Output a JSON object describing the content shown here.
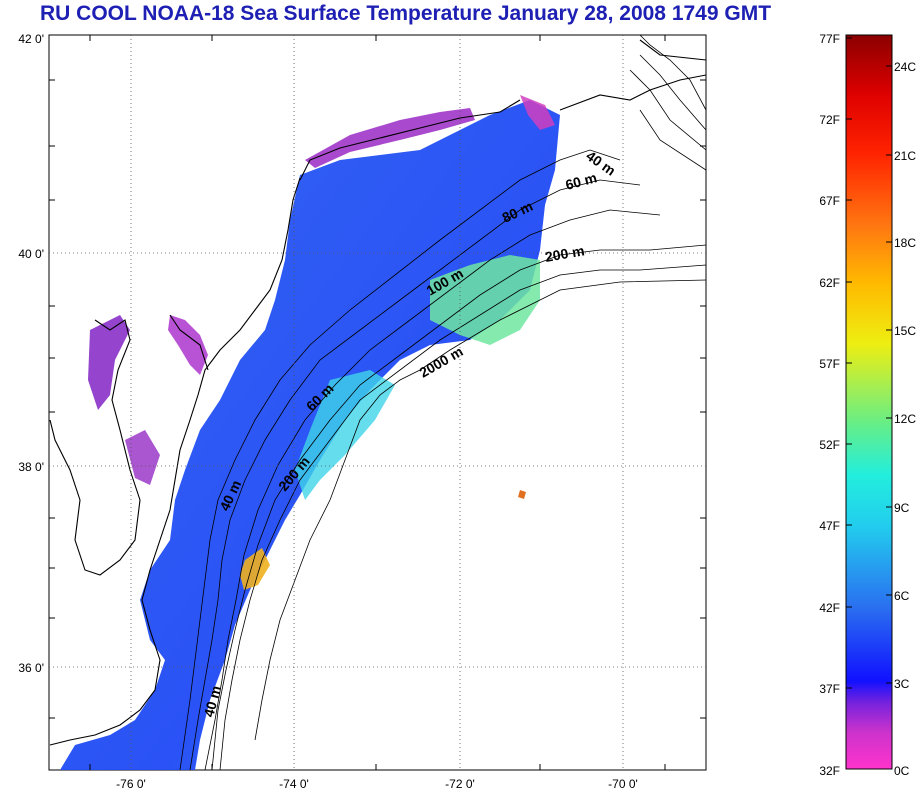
{
  "title": "RU COOL  NOAA-18 Sea Surface Temperature January 28, 2008 1749 GMT",
  "map": {
    "lat_ticks": [
      "42 0'",
      "40 0'",
      "38 0'",
      "36 0'"
    ],
    "lon_ticks": [
      "-76 0'",
      "-74 0'",
      "-72 0'",
      "-70 0'"
    ],
    "contour_labels": [
      "40 m",
      "60 m",
      "80 m",
      "200 m",
      "100 m",
      "2000 m",
      "60 m",
      "200 m",
      "40 m",
      "40 m"
    ]
  },
  "colorbar": {
    "fahrenheit": [
      "77F",
      "72F",
      "67F",
      "62F",
      "57F",
      "52F",
      "47F",
      "42F",
      "37F",
      "32F"
    ],
    "celsius": [
      "24C",
      "21C",
      "18C",
      "15C",
      "12C",
      "9C",
      "6C",
      "3C",
      "0C"
    ],
    "colors": [
      "#ff33cc",
      "#cc33cc",
      "#7722dd",
      "#1111ff",
      "#2a6ff0",
      "#33bbee",
      "#22eeee",
      "#55ee99",
      "#99ee44",
      "#eeee11",
      "#ffbb00",
      "#ff7711",
      "#ff2200",
      "#cc0000",
      "#8b0000"
    ]
  }
}
